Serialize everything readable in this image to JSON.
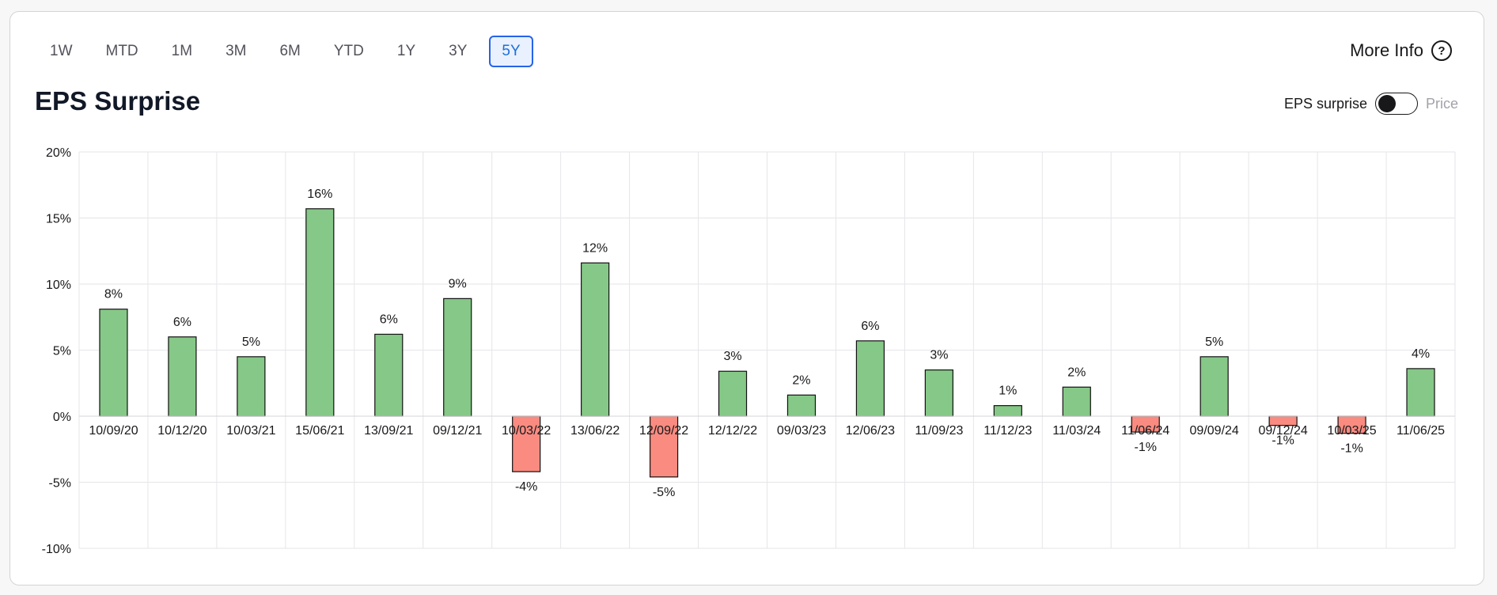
{
  "ranges": [
    "1W",
    "MTD",
    "1M",
    "3M",
    "6M",
    "YTD",
    "1Y",
    "3Y",
    "5Y"
  ],
  "active_range": "5Y",
  "more_info_label": "More Info",
  "help_glyph": "?",
  "toggle": {
    "on_label": "EPS surprise",
    "off_label": "Price",
    "state": "EPS surprise"
  },
  "colors": {
    "positive": "#86c887",
    "negative": "#f98b80",
    "accent": "#2563eb"
  },
  "chart_data": {
    "type": "bar",
    "title": "EPS Surprise",
    "categories": [
      "10/09/20",
      "10/12/20",
      "10/03/21",
      "15/06/21",
      "13/09/21",
      "09/12/21",
      "10/03/22",
      "13/06/22",
      "12/09/22",
      "12/12/22",
      "09/03/23",
      "12/06/23",
      "11/09/23",
      "11/12/23",
      "11/03/24",
      "11/06/24",
      "09/09/24",
      "09/12/24",
      "10/03/25",
      "11/06/25"
    ],
    "values": [
      8.1,
      6.0,
      4.5,
      15.7,
      6.2,
      8.9,
      -4.2,
      11.6,
      -4.6,
      3.4,
      1.6,
      5.7,
      3.5,
      0.8,
      2.2,
      -1.2,
      4.5,
      -0.7,
      -1.3,
      3.6
    ],
    "data_labels": [
      "8%",
      "6%",
      "5%",
      "16%",
      "6%",
      "9%",
      "-4%",
      "12%",
      "-5%",
      "3%",
      "2%",
      "6%",
      "3%",
      "1%",
      "2%",
      "-1%",
      "5%",
      "-1%",
      "-1%",
      "4%"
    ],
    "y_ticks": [
      20,
      15,
      10,
      5,
      0,
      -5,
      -10
    ],
    "y_tick_labels": [
      "20%",
      "15%",
      "10%",
      "5%",
      "0%",
      "-5%",
      "-10%"
    ],
    "ylim": [
      -10,
      20
    ],
    "grid": true,
    "legend": "none"
  }
}
